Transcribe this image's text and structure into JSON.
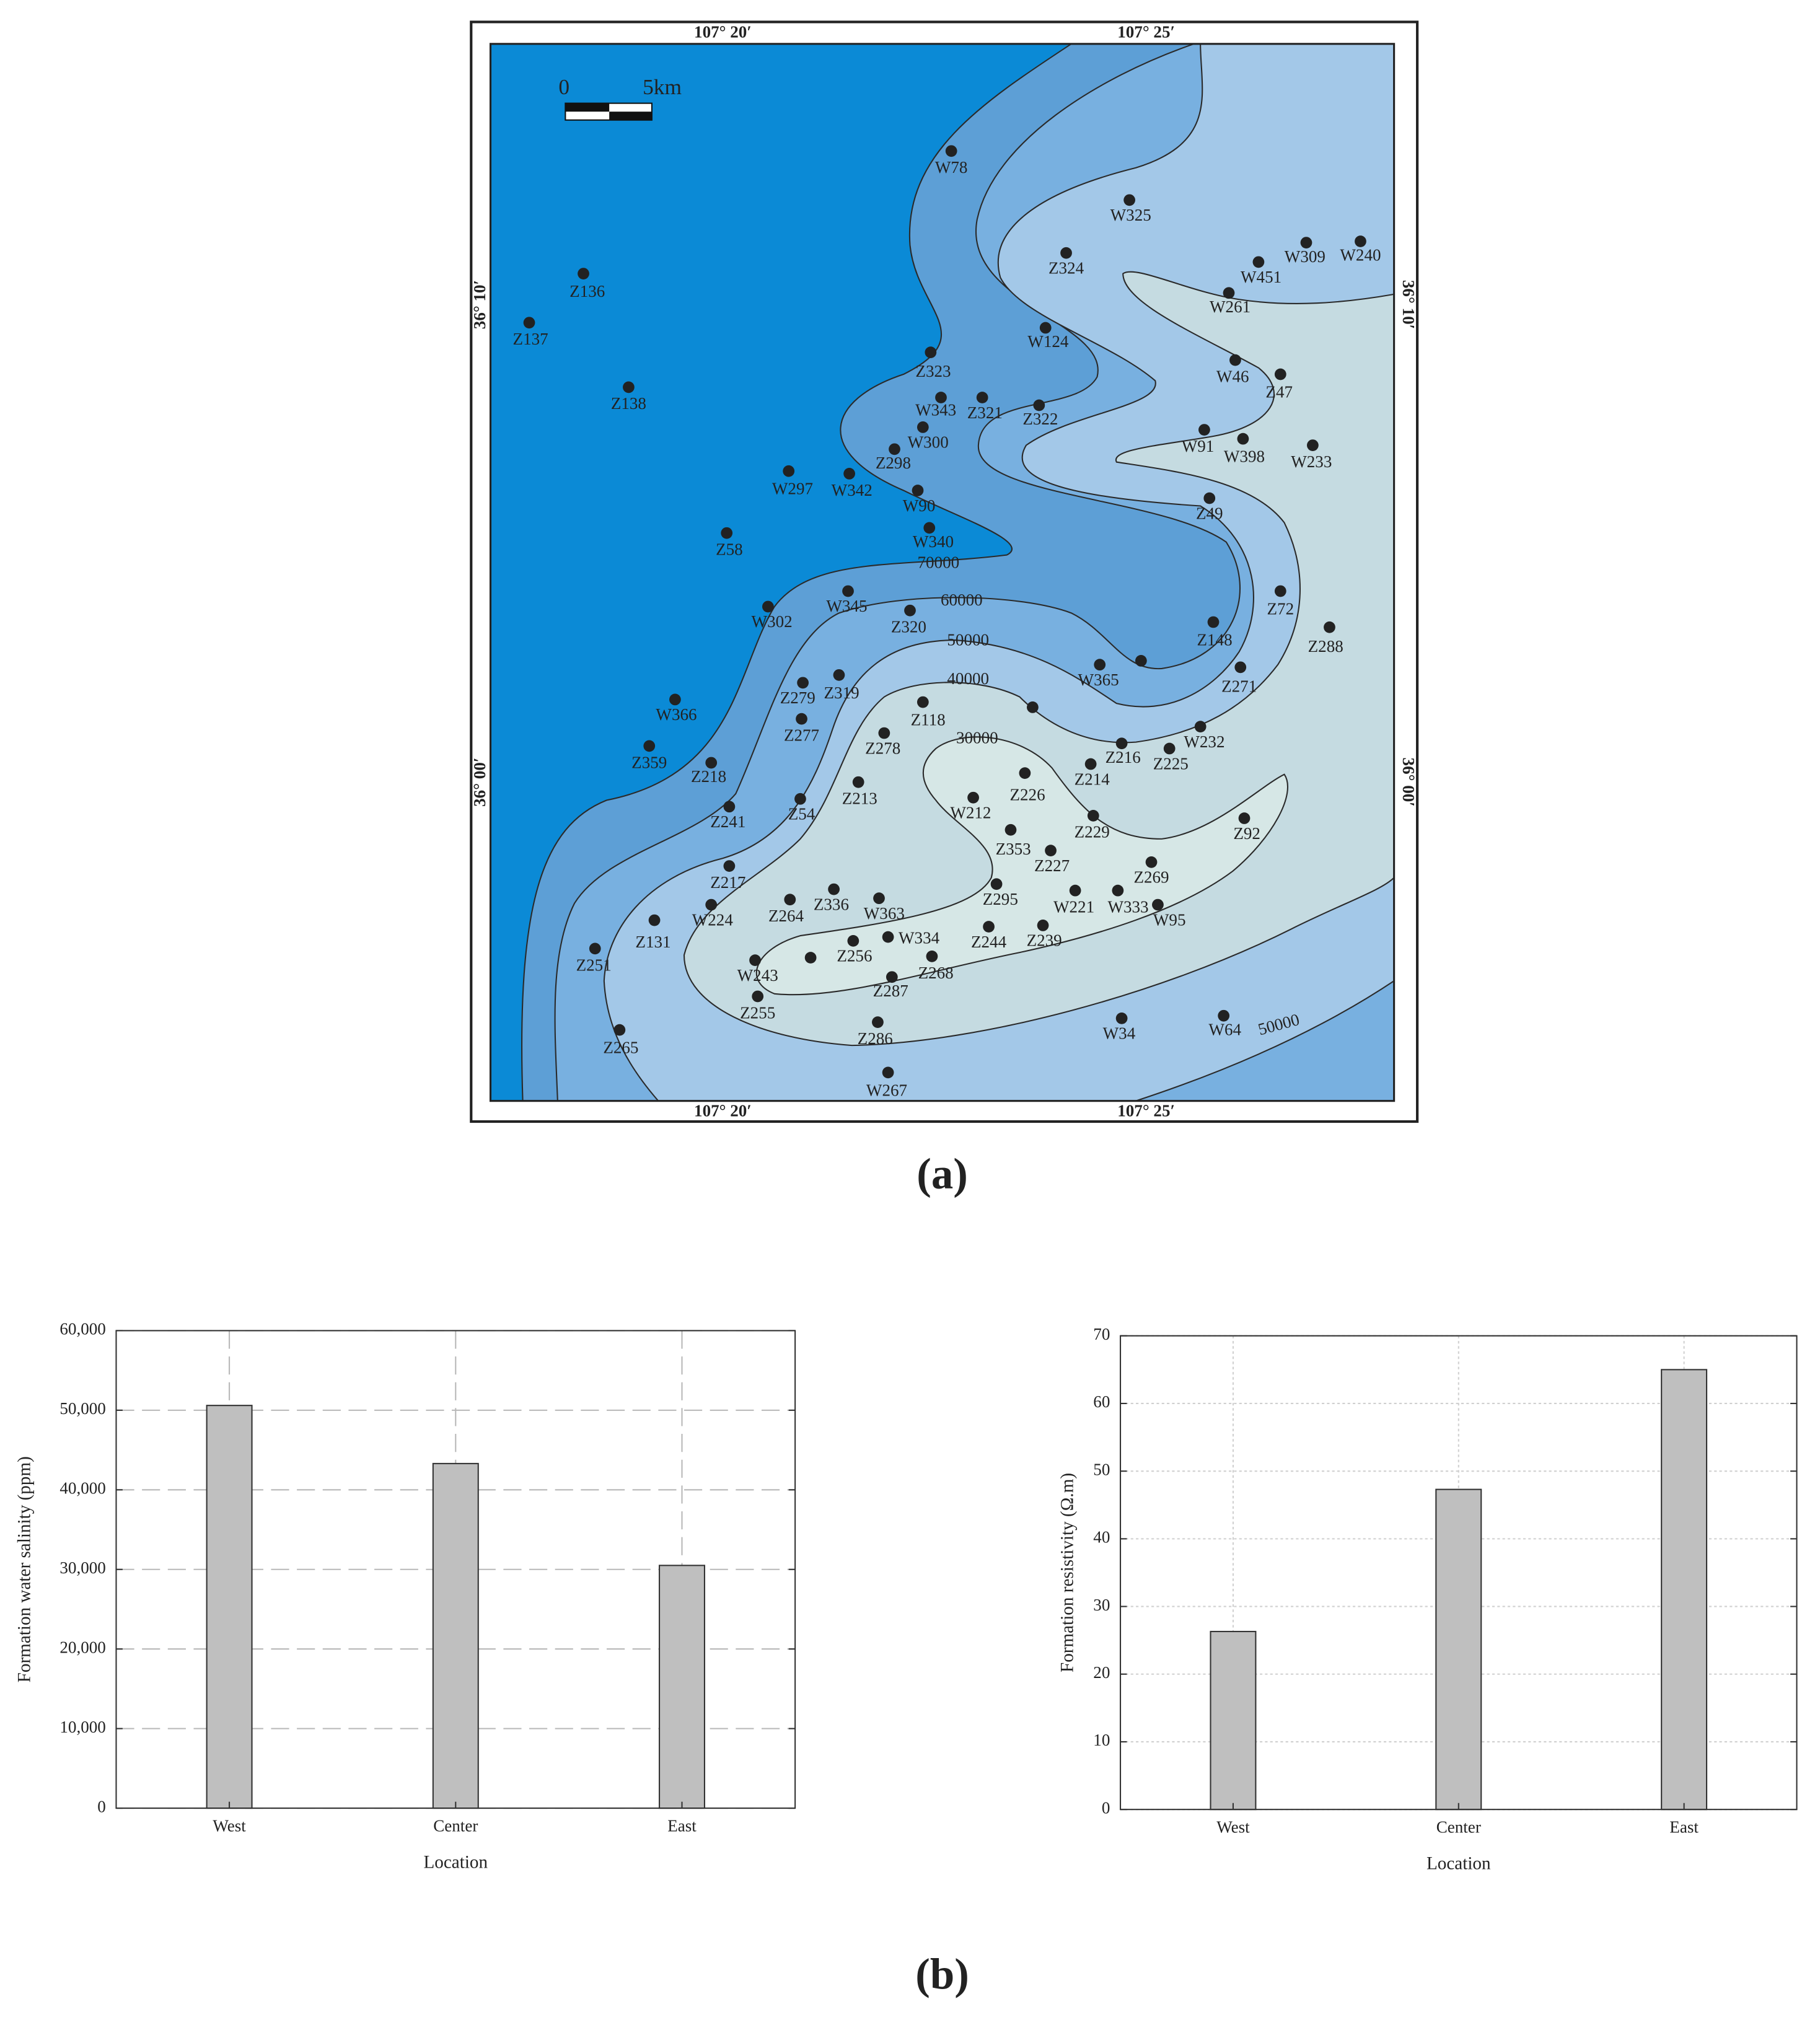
{
  "captions": [
    "(a)",
    "(b)"
  ],
  "map": {
    "coordinates": {
      "top": [
        "107° 20′",
        "107° 25′"
      ],
      "bottom": [
        "107° 20′",
        "107° 25′"
      ],
      "left": [
        "36° 10′",
        "36° 00′"
      ],
      "right": [
        "36° 10′",
        "36° 00′"
      ]
    },
    "scale_bar": [
      "0",
      "5km"
    ],
    "contours": [
      "70000",
      "60000",
      "50000",
      "40000",
      "30000",
      "50000"
    ],
    "wells": [
      "W78",
      "W325",
      "Z324",
      "W309",
      "W240",
      "W451",
      "W261",
      "Z136",
      "Z137",
      "W124",
      "Z323",
      "W46",
      "Z47",
      "Z138",
      "W343",
      "Z321",
      "Z322",
      "W300",
      "W91",
      "W398",
      "W233",
      "Z298",
      "W297",
      "W342",
      "W90",
      "Z49",
      "W340",
      "Z58",
      "W345",
      "Z72",
      "W302",
      "Z320",
      "Z148",
      "Z288",
      "W365",
      "Z271",
      "Z319",
      "Z279",
      "W366",
      "Z118",
      "Z277",
      "W232",
      "Z278",
      "Z216",
      "Z225",
      "Z359",
      "Z218",
      "Z214",
      "Z226",
      "Z213",
      "W212",
      "Z54",
      "Z241",
      "Z92",
      "Z229",
      "Z353",
      "Z227",
      "Z269",
      "Z217",
      "Z295",
      "Z336",
      "W363",
      "Z264",
      "W224",
      "W221",
      "W333",
      "W95",
      "Z131",
      "Z244",
      "Z239",
      "W334",
      "Z256",
      "Z251",
      "Z268",
      "W243",
      "Z287",
      "Z255",
      "W34",
      "W64",
      "Z286",
      "Z265",
      "W267"
    ]
  },
  "chart_data": [
    {
      "type": "bar",
      "categories": [
        "West",
        "Center",
        "East"
      ],
      "values": [
        50600,
        43300,
        30500
      ],
      "color": "#bfbfbf",
      "xlabel": "Location",
      "ylabel": "Formation water salinity (ppm)",
      "ylim": [
        0,
        60000
      ],
      "yticks": [
        0,
        {
          "value": 10000,
          "label": "10,000"
        },
        {
          "value": 20000,
          "label": "20,000"
        },
        {
          "value": 30000,
          "label": "30,000"
        },
        {
          "value": 40000,
          "label": "40,000"
        },
        {
          "value": 50000,
          "label": "50,000"
        },
        {
          "value": 60000,
          "label": "60,000"
        }
      ],
      "grid": "dashed"
    },
    {
      "type": "bar",
      "categories": [
        "West",
        "Center",
        "East"
      ],
      "values": [
        26.3,
        47.3,
        65.0
      ],
      "color": "#bfbfbf",
      "xlabel": "Location",
      "ylabel": "Formation resistivity (Ω.m)",
      "ylim": [
        0,
        70
      ],
      "yticks": [
        0,
        10,
        20,
        30,
        40,
        50,
        60,
        70
      ],
      "grid": "dotted"
    }
  ]
}
